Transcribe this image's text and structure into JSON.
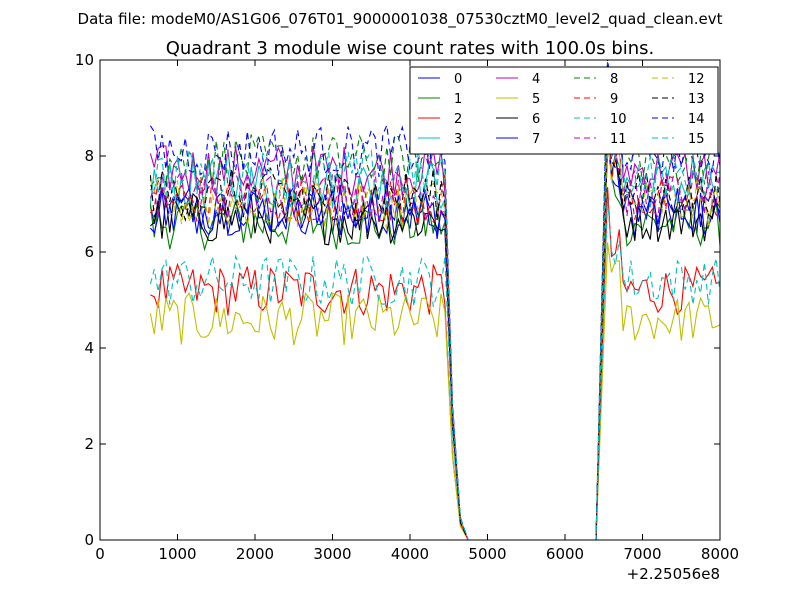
{
  "chart_data": {
    "type": "line",
    "suptitle": "Data file: modeM0/AS1G06_076T01_9000001038_07530cztM0_level2_quad_clean.evt",
    "title": "Quadrant 3 module wise count rates with 100.0s bins.",
    "xlabel": "",
    "ylabel": "",
    "offset_label": "+2.25056e8",
    "xlim": [
      0,
      8000
    ],
    "ylim": [
      0,
      10
    ],
    "xticks": [
      0,
      1000,
      2000,
      3000,
      4000,
      5000,
      6000,
      7000,
      8000
    ],
    "yticks": [
      0,
      2,
      4,
      6,
      8,
      10
    ],
    "legend_position": "top-right",
    "segments": [
      {
        "x_start": 650,
        "x_end": 4450,
        "step": 50
      },
      {
        "x_start": 6550,
        "x_end": 8000,
        "step": 50
      }
    ],
    "gap": {
      "x": [
        4450,
        4550,
        4650,
        4750,
        6300,
        6400,
        6550
      ],
      "y_factor": [
        1.0,
        0.35,
        0.05,
        0.0,
        0.0,
        0.0,
        1.0
      ]
    },
    "series": [
      {
        "name": "0",
        "color": "#0000ff",
        "dash": "solid",
        "level": 6.8
      },
      {
        "name": "1",
        "color": "#008000",
        "dash": "solid",
        "level": 6.6
      },
      {
        "name": "2",
        "color": "#ff0000",
        "dash": "solid",
        "level": 5.2
      },
      {
        "name": "3",
        "color": "#00bfbf",
        "dash": "solid",
        "level": 7.4
      },
      {
        "name": "4",
        "color": "#bf00bf",
        "dash": "solid",
        "level": 7.7
      },
      {
        "name": "5",
        "color": "#bfbf00",
        "dash": "solid",
        "level": 4.6
      },
      {
        "name": "6",
        "color": "#000000",
        "dash": "solid",
        "level": 6.7
      },
      {
        "name": "7",
        "color": "#0000ff",
        "dash": "solid",
        "level": 6.9
      },
      {
        "name": "8",
        "color": "#008000",
        "dash": "dashed",
        "level": 7.9
      },
      {
        "name": "9",
        "color": "#ff0000",
        "dash": "dashed",
        "level": 7.1
      },
      {
        "name": "10",
        "color": "#00bfbf",
        "dash": "dashed",
        "level": 5.4
      },
      {
        "name": "11",
        "color": "#bf00bf",
        "dash": "dashed",
        "level": 7.2
      },
      {
        "name": "12",
        "color": "#bfbf00",
        "dash": "dashed",
        "level": 7.0
      },
      {
        "name": "13",
        "color": "#000000",
        "dash": "dashed",
        "level": 7.2
      },
      {
        "name": "14",
        "color": "#0000ff",
        "dash": "dashed",
        "level": 8.1
      },
      {
        "name": "15",
        "color": "#00bfbf",
        "dash": "dashed",
        "level": 7.6
      }
    ]
  }
}
